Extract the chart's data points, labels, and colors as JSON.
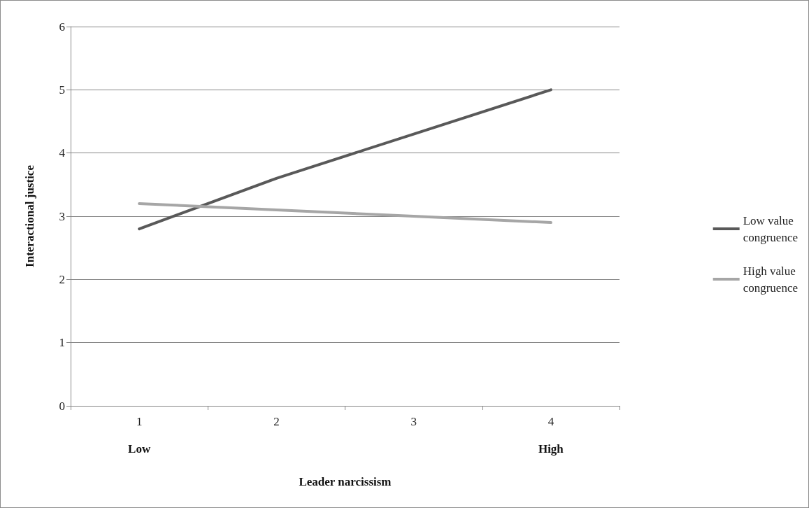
{
  "chart_data": {
    "type": "line",
    "xlabel": "Leader narcissism",
    "ylabel": "Interactional justice",
    "categories": [
      "1",
      "2",
      "3",
      "4"
    ],
    "series": [
      {
        "name": "Low value congruence",
        "color": "#595959",
        "values": [
          2.8,
          3.6,
          4.3,
          5.0
        ]
      },
      {
        "name": "High value congruence",
        "color": "#a6a6a6",
        "values": [
          3.2,
          3.1,
          3.0,
          2.9
        ]
      }
    ],
    "ylim": [
      0,
      6
    ],
    "yticks": [
      0,
      1,
      2,
      3,
      4,
      5,
      6
    ],
    "grid": "y",
    "legend": "right",
    "marker": "none",
    "line_style": "solid",
    "annotations": [
      "Low",
      "High"
    ]
  }
}
